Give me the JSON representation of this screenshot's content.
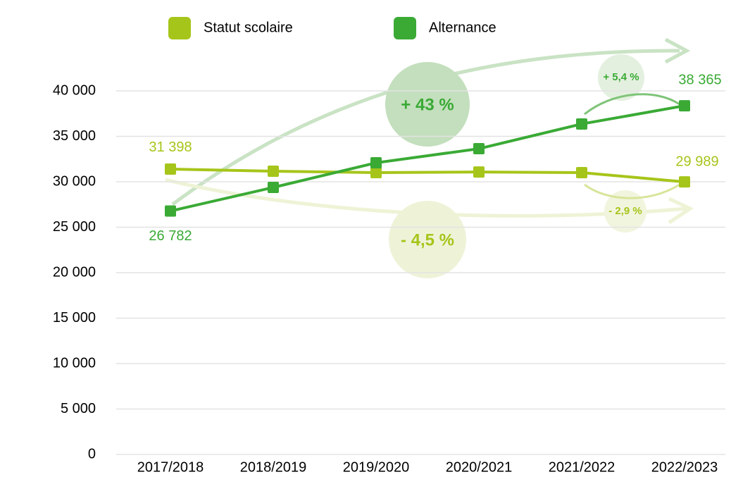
{
  "chart_data": {
    "type": "line",
    "categories": [
      "2017/2018",
      "2018/2019",
      "2019/2020",
      "2020/2021",
      "2021/2022",
      "2022/2023"
    ],
    "series": [
      {
        "name": "Statut scolaire",
        "color": "#a6c51a",
        "values": [
          31398,
          31160,
          31010,
          31080,
          31010,
          29989
        ],
        "value_labels": [
          "31 398",
          null,
          null,
          null,
          null,
          "29 989"
        ]
      },
      {
        "name": "Alternance",
        "color": "#3aaa35",
        "values": [
          26782,
          29380,
          32090,
          33640,
          36360,
          38365
        ],
        "value_labels": [
          "26 782",
          null,
          null,
          null,
          null,
          "38 365"
        ]
      }
    ],
    "ylim": [
      0,
      40000
    ],
    "yticks": [
      0,
      {
        "value": 5000,
        "label": "5 000"
      },
      {
        "value": 10000,
        "label": "10 000"
      },
      {
        "value": 15000,
        "label": "15 000"
      },
      {
        "value": 20000,
        "label": "20 000"
      },
      {
        "value": 25000,
        "label": "25 000"
      },
      {
        "value": 30000,
        "label": "30 000"
      },
      {
        "value": 35000,
        "label": "35 000"
      },
      {
        "value": 40000,
        "label": "40 000"
      }
    ],
    "grid": true,
    "annotations": [
      "+ 43 %",
      "- 4,5 %",
      "+ 5,4 %",
      "- 2,9 %"
    ]
  }
}
